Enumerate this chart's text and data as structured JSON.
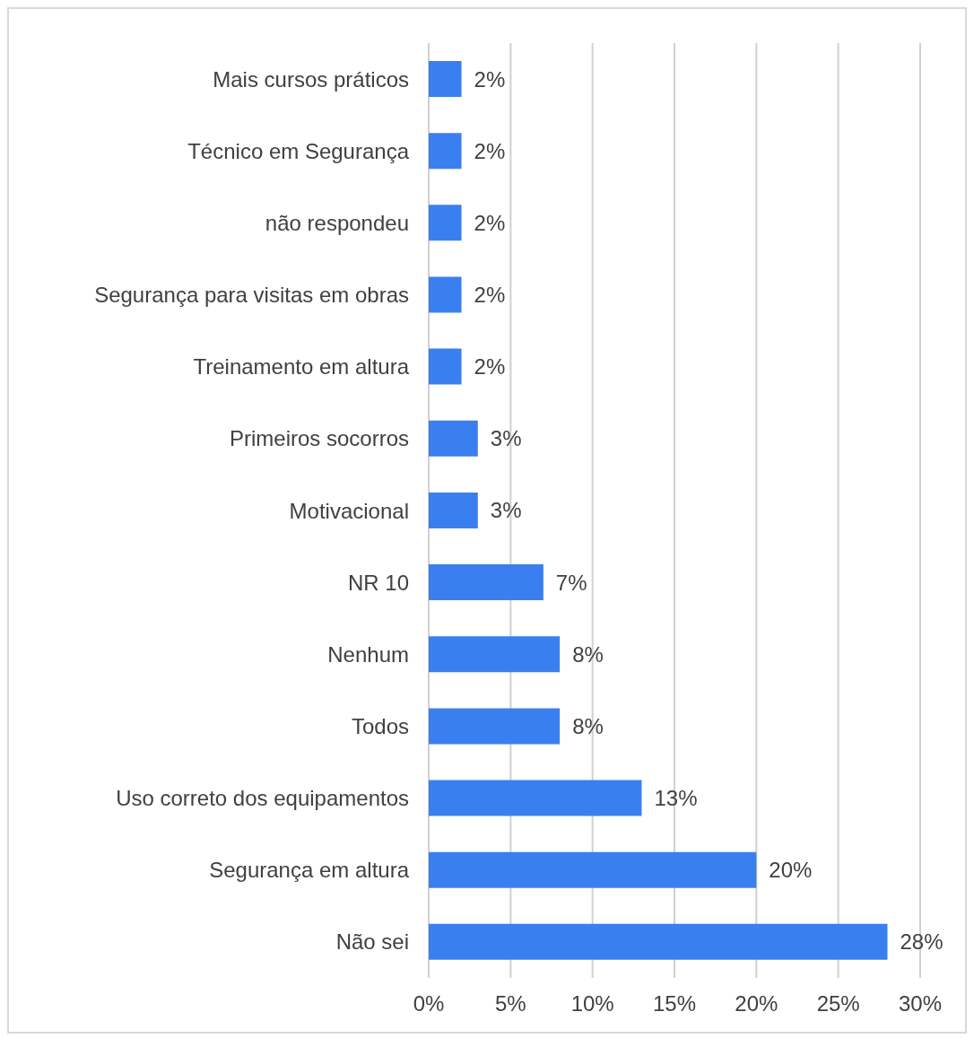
{
  "chart_data": {
    "type": "bar",
    "orientation": "horizontal",
    "categories": [
      "Mais cursos práticos",
      "Técnico em Segurança",
      "não respondeu",
      "Segurança para visitas em obras",
      "Treinamento em altura",
      "Primeiros socorros",
      "Motivacional",
      "NR 10",
      "Nenhum",
      "Todos",
      "Uso correto dos equipamentos",
      "Segurança em altura",
      "Não sei"
    ],
    "values": [
      2,
      2,
      2,
      2,
      2,
      3,
      3,
      7,
      8,
      8,
      13,
      20,
      28
    ],
    "value_labels": [
      "2%",
      "2%",
      "2%",
      "2%",
      "2%",
      "3%",
      "3%",
      "7%",
      "8%",
      "8%",
      "13%",
      "20%",
      "28%"
    ],
    "color": "#3a7ff0",
    "xlim": [
      0,
      30
    ],
    "xticks": [
      {
        "value": 0,
        "label": "0%"
      },
      {
        "value": 5,
        "label": "5%"
      },
      {
        "value": 10,
        "label": "10%"
      },
      {
        "value": 15,
        "label": "15%"
      },
      {
        "value": 20,
        "label": "20%"
      },
      {
        "value": 25,
        "label": "25%"
      },
      {
        "value": 30,
        "label": "30%"
      }
    ],
    "grid": "x"
  }
}
